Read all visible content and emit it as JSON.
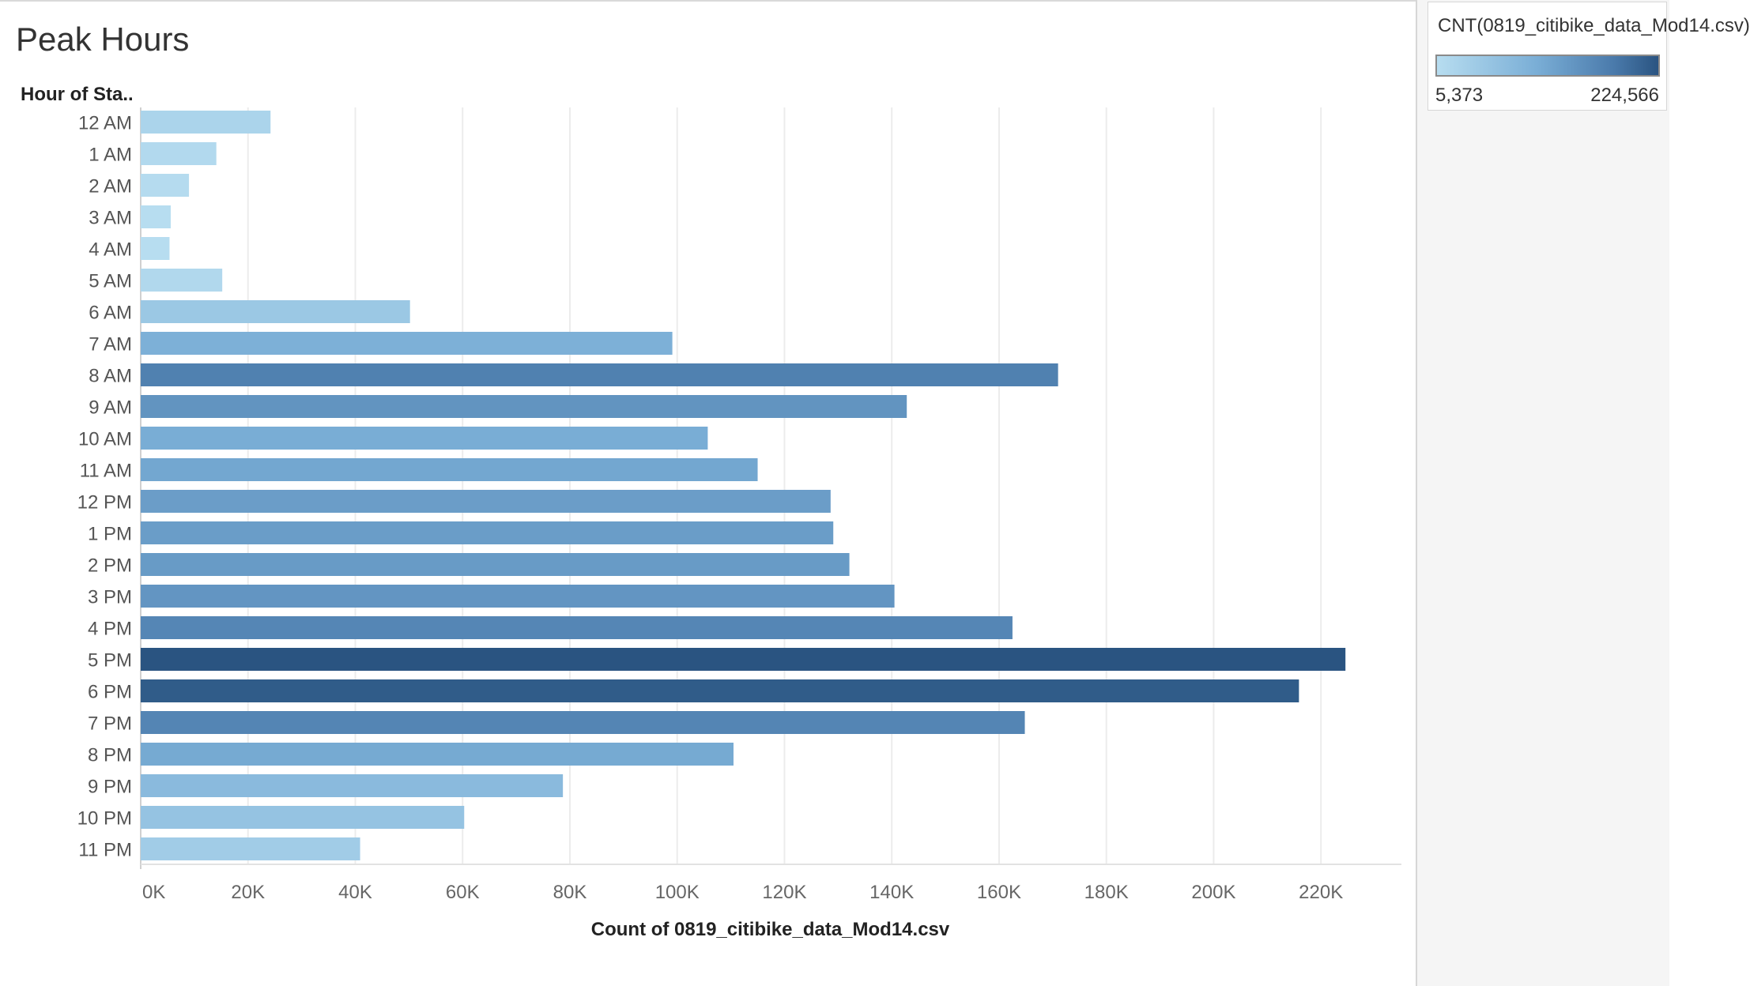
{
  "title": "Peak Hours",
  "legend": {
    "title": "CNT(0819_citibike_data_Mod14.csv)",
    "min_label": "5,373",
    "max_label": "224,566",
    "min_value": 5373,
    "max_value": 224566,
    "color_low": "#b7ddf0",
    "color_high": "#2a5481"
  },
  "chart_data": {
    "type": "bar",
    "orientation": "horizontal",
    "title": "Peak Hours",
    "row_header": "Hour of Sta..",
    "xlabel": "Count of 0819_citibike_data_Mod14.csv",
    "xlim": [
      0,
      235000
    ],
    "grid": true,
    "x_ticks": [
      0,
      20000,
      40000,
      60000,
      80000,
      100000,
      120000,
      140000,
      160000,
      180000,
      200000,
      220000
    ],
    "x_tick_labels": [
      "0K",
      "20K",
      "40K",
      "60K",
      "80K",
      "100K",
      "120K",
      "140K",
      "160K",
      "180K",
      "200K",
      "220K"
    ],
    "categories": [
      "12 AM",
      "1 AM",
      "2 AM",
      "3 AM",
      "4 AM",
      "5 AM",
      "6 AM",
      "7 AM",
      "8 AM",
      "9 AM",
      "10 AM",
      "11 AM",
      "12 PM",
      "1 PM",
      "2 PM",
      "3 PM",
      "4 PM",
      "5 PM",
      "6 PM",
      "7 PM",
      "8 PM",
      "9 PM",
      "10 PM",
      "11 PM"
    ],
    "values": [
      24200,
      14100,
      9000,
      5600,
      5373,
      15200,
      50200,
      99100,
      171000,
      142800,
      105700,
      115000,
      128600,
      129100,
      132100,
      140500,
      162500,
      224566,
      215900,
      164800,
      110500,
      78700,
      60300,
      40900
    ]
  }
}
